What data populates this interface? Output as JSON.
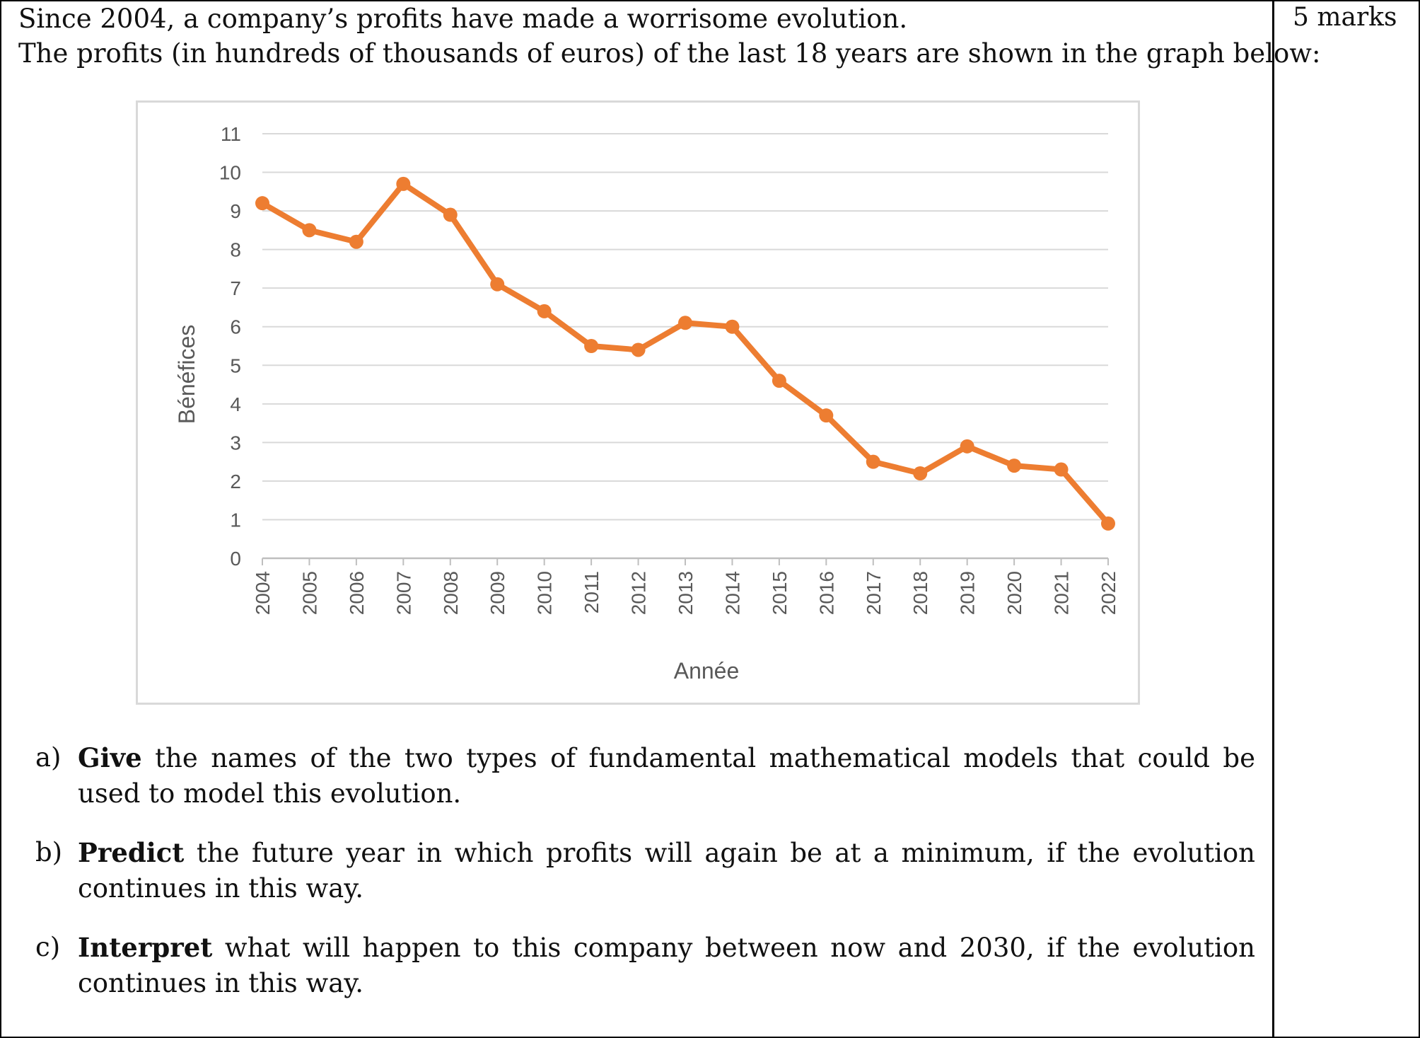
{
  "intro": {
    "line1": "Since 2004, a company’s profits have made a worrisome evolution.",
    "line2": "The profits (in hundreds of thousands of euros) of the last 18 years are shown in the graph below:"
  },
  "marks": "5 marks",
  "chart_data": {
    "type": "line",
    "title": "",
    "xlabel": "Année",
    "ylabel": "Bénéfices",
    "ylim": [
      0,
      11
    ],
    "yticks": [
      "0",
      "1",
      "2",
      "3",
      "4",
      "5",
      "6",
      "7",
      "8",
      "9",
      "10",
      "11"
    ],
    "grid": true,
    "color": "#ED7D31",
    "x": [
      "2004",
      "2005",
      "2006",
      "2007",
      "2008",
      "2009",
      "2010",
      "2011",
      "2012",
      "2013",
      "2014",
      "2015",
      "2016",
      "2017",
      "2018",
      "2019",
      "2020",
      "2021",
      "2022"
    ],
    "y": [
      9.2,
      8.5,
      8.2,
      9.7,
      8.9,
      7.1,
      6.4,
      5.5,
      5.4,
      6.1,
      6.0,
      4.6,
      3.7,
      2.5,
      2.2,
      2.9,
      2.4,
      2.3,
      0.9
    ]
  },
  "questions": [
    {
      "label": "a)",
      "verb": "Give",
      "rest": "the names of the two types of fundamental mathematical models that could be used to model this evolution."
    },
    {
      "label": "b)",
      "verb": "Predict",
      "rest": "the future year in which profits will again be at a minimum, if the evolution continues in this way."
    },
    {
      "label": "c)",
      "verb": "Interpret",
      "rest": "what will happen to this company between now and 2030, if the evolution continues in this way."
    }
  ]
}
